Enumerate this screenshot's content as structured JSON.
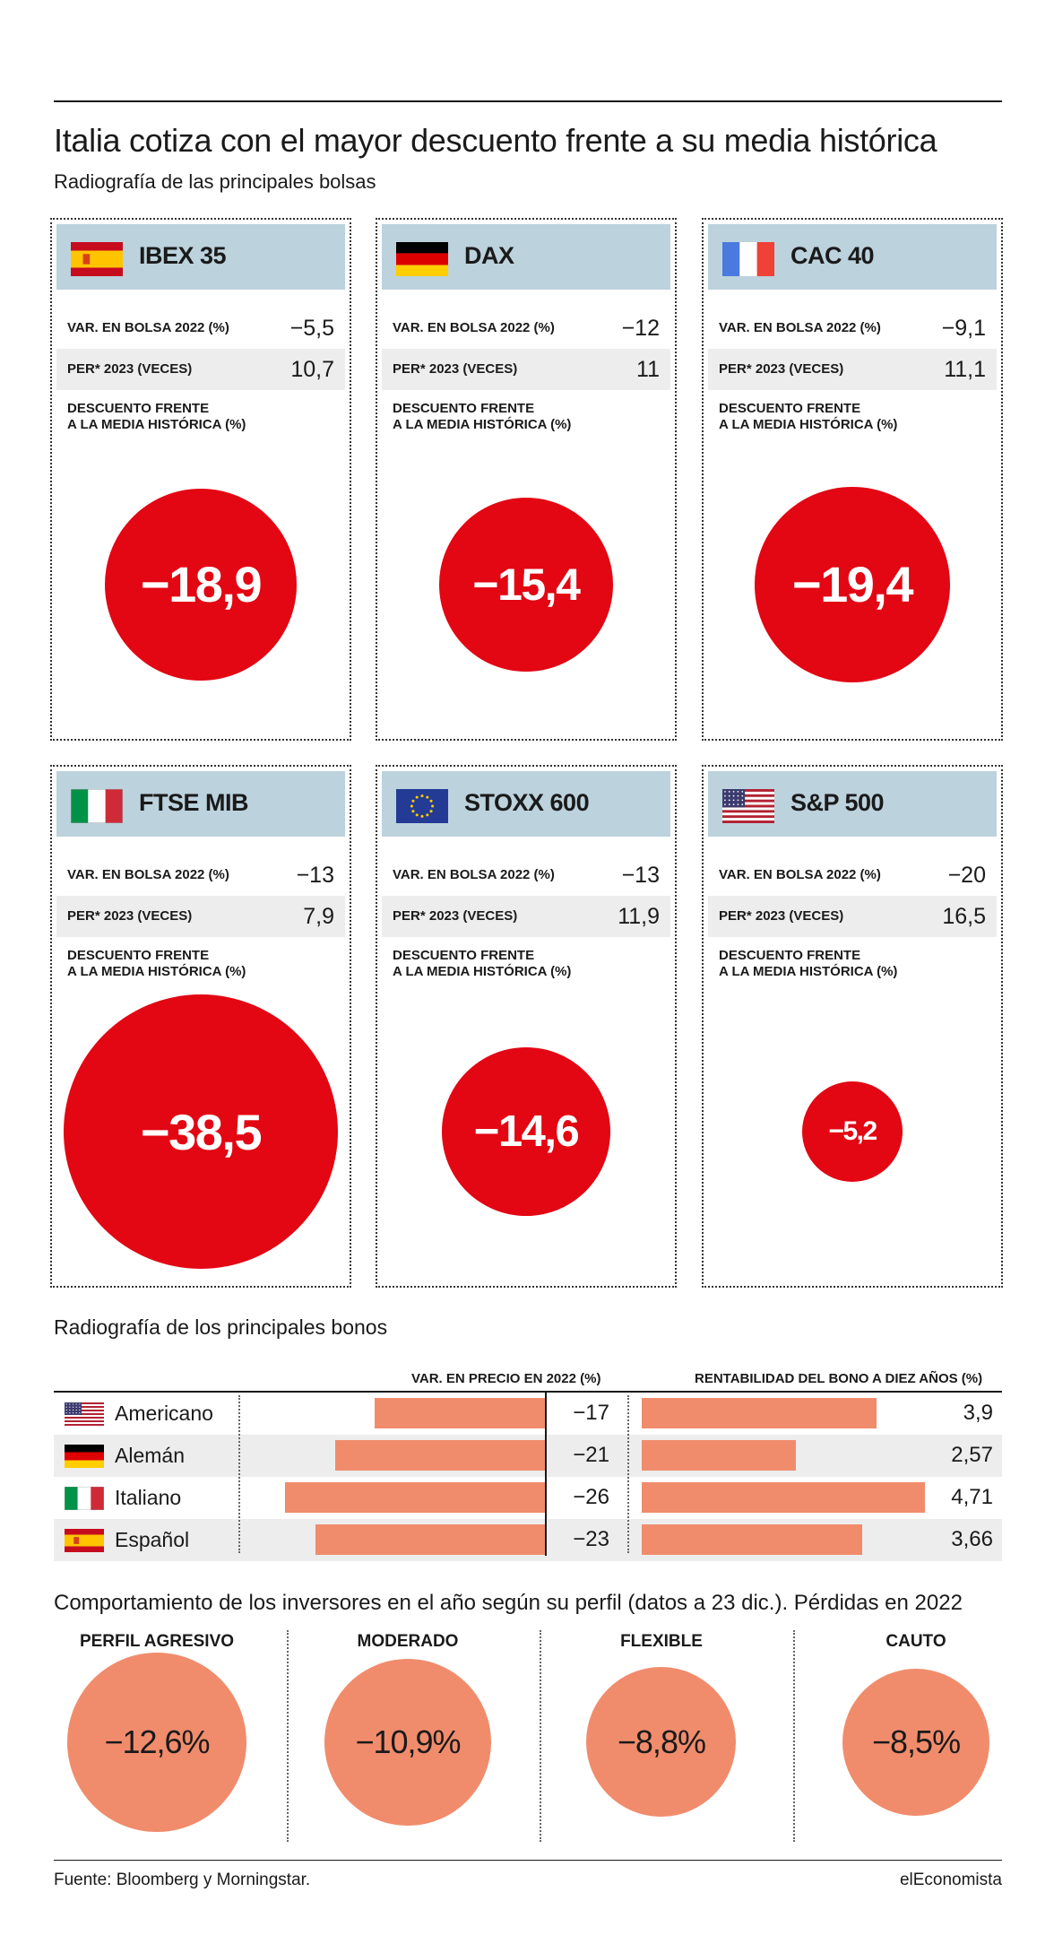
{
  "title": "Italia cotiza con el mayor descuento frente a su media histórica",
  "subtitle": "Radiografía de las principales bolsas",
  "labels": {
    "var": "VAR. EN BOLSA 2022 (%)",
    "per": "PER* 2023 (VECES)",
    "disc": "DESCUENTO FRENTE\nA LA MEDIA HISTÓRICA (%)"
  },
  "indices": [
    {
      "name": "IBEX 35",
      "flag": "spain-flag",
      "var": "−5,5",
      "per": "10,7",
      "discount_label": "−18,9",
      "discount": -18.9
    },
    {
      "name": "DAX",
      "flag": "germany-flag",
      "var": "−12",
      "per": "11",
      "discount_label": "−15,4",
      "discount": -15.4
    },
    {
      "name": "CAC 40",
      "flag": "france-flag",
      "var": "−9,1",
      "per": "11,1",
      "discount_label": "−19,4",
      "discount": -19.4
    },
    {
      "name": "FTSE MIB",
      "flag": "italy-flag",
      "var": "−13",
      "per": "7,9",
      "discount_label": "−38,5",
      "discount": -38.5
    },
    {
      "name": "STOXX 600",
      "flag": "eu-flag",
      "var": "−13",
      "per": "11,9",
      "discount_label": "−14,6",
      "discount": -14.6
    },
    {
      "name": "S&P 500",
      "flag": "usa-flag",
      "var": "−20",
      "per": "16,5",
      "discount_label": "−5,2",
      "discount": -5.2
    }
  ],
  "bonds": {
    "title": "Radiografía de los principales bonos",
    "col_price": "VAR. EN PRECIO EN 2022 (%)",
    "col_yield": "RENTABILIDAD DEL BONO A DIEZ AÑOS (%)",
    "rows": [
      {
        "name": "Americano",
        "flag": "usa-flag",
        "price": -17,
        "price_label": "−17",
        "yield": 3.9,
        "yield_label": "3,9"
      },
      {
        "name": "Alemán",
        "flag": "germany-flag",
        "price": -21,
        "price_label": "−21",
        "yield": 2.57,
        "yield_label": "2,57"
      },
      {
        "name": "Italiano",
        "flag": "italy-flag",
        "price": -26,
        "price_label": "−26",
        "yield": 4.71,
        "yield_label": "4,71"
      },
      {
        "name": "Español",
        "flag": "spain-flag",
        "price": -23,
        "price_label": "−23",
        "yield": 3.66,
        "yield_label": "3,66"
      }
    ]
  },
  "investors": {
    "title": "Comportamiento de los inversores en el año según su perfil (datos a 23 dic.). Pérdidas en 2022",
    "profiles": [
      {
        "label": "PERFIL AGRESIVO",
        "value_label": "−12,6%",
        "value": -12.6
      },
      {
        "label": "MODERADO",
        "value_label": "−10,9%",
        "value": -10.9
      },
      {
        "label": "FLEXIBLE",
        "value_label": "−8,8%",
        "value": -8.8
      },
      {
        "label": "CAUTO",
        "value_label": "−8,5%",
        "value": -8.5
      }
    ]
  },
  "chart_data": [
    {
      "type": "bubble",
      "title": "Radiografía de las principales bolsas",
      "categories": [
        "IBEX 35",
        "DAX",
        "CAC 40",
        "FTSE MIB",
        "STOXX 600",
        "S&P 500"
      ],
      "series": [
        {
          "name": "VAR. EN BOLSA 2022 (%)",
          "values": [
            -5.5,
            -12,
            -9.1,
            -13,
            -13,
            -20
          ]
        },
        {
          "name": "PER* 2023 (VECES)",
          "values": [
            10.7,
            11,
            11.1,
            7.9,
            11.9,
            16.5
          ]
        },
        {
          "name": "DESCUENTO FRENTE A LA MEDIA HISTÓRICA (%)",
          "values": [
            -18.9,
            -15.4,
            -19.4,
            -38.5,
            -14.6,
            -5.2
          ]
        }
      ]
    },
    {
      "type": "bar",
      "title": "Radiografía de los principales bonos",
      "categories": [
        "Americano",
        "Alemán",
        "Italiano",
        "Español"
      ],
      "series": [
        {
          "name": "VAR. EN PRECIO EN 2022 (%)",
          "values": [
            -17,
            -21,
            -26,
            -23
          ]
        },
        {
          "name": "RENTABILIDAD DEL BONO A DIEZ AÑOS (%)",
          "values": [
            3.9,
            2.57,
            4.71,
            3.66
          ]
        }
      ]
    },
    {
      "type": "bubble",
      "title": "Comportamiento de los inversores en el año según su perfil (datos a 23 dic.). Pérdidas en 2022",
      "categories": [
        "PERFIL AGRESIVO",
        "MODERADO",
        "FLEXIBLE",
        "CAUTO"
      ],
      "values": [
        -12.6,
        -10.9,
        -8.8,
        -8.5
      ]
    }
  ],
  "colors": {
    "discount_circle": "#e30613",
    "bar": "#f08c6c",
    "header": "#bcd2dd",
    "shade": "#ededed"
  },
  "footer": {
    "source": "Fuente: Bloomberg y Morningstar.",
    "brand": "elEconomista"
  }
}
